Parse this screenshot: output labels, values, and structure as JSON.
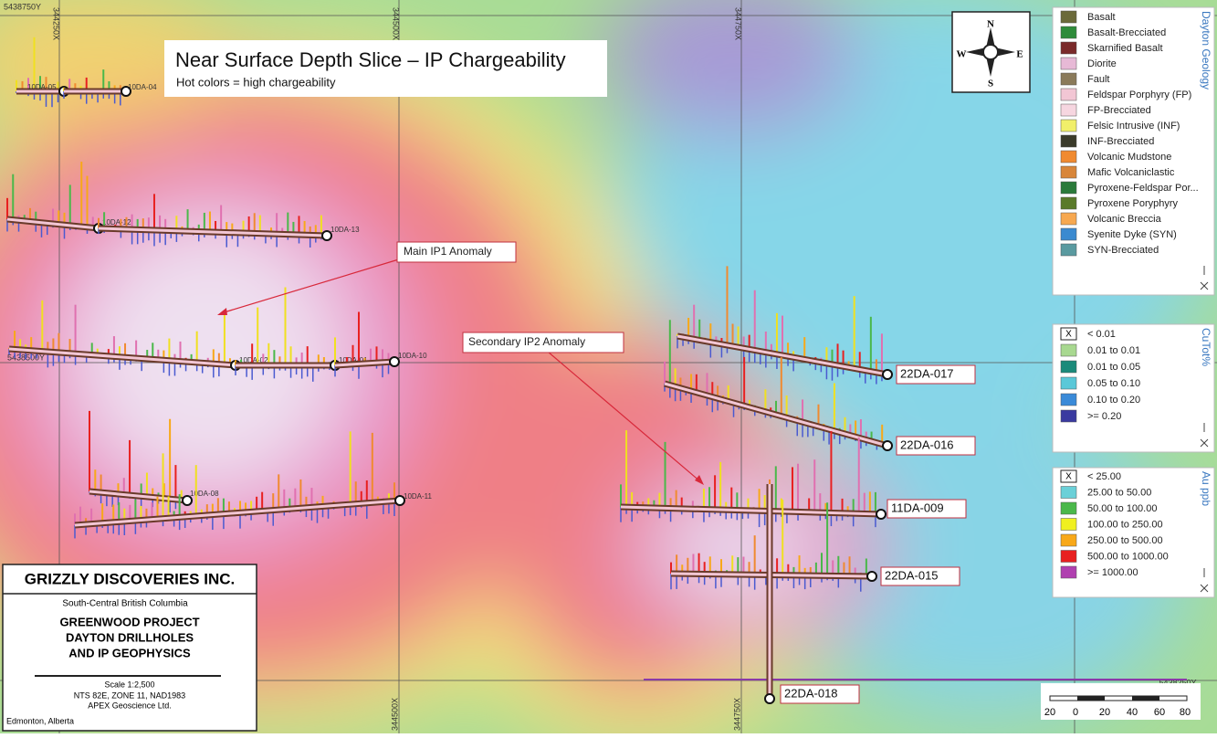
{
  "map": {
    "title": "Near Surface Depth Slice – IP Chargeability",
    "subtitle": "Hot colors = high chargeability",
    "grid_labels": {
      "top": [
        "5438750Y",
        "344250X",
        "344500X",
        "344750X"
      ],
      "left": "5438500Y",
      "bottom": [
        "344500X",
        "344750X"
      ],
      "right": "5438250Y"
    },
    "annotations": [
      "Main IP1 Anomaly",
      "Secondary IP2 Anomaly"
    ],
    "drillholes": [
      "10DA-05",
      "10DA-04",
      "10DA-12",
      "10DA-13",
      "10DA-02",
      "10DA-01",
      "10DA-10",
      "10DA-08",
      "10DA-11",
      "22DA-017",
      "22DA-016",
      "11DA-009",
      "22DA-015",
      "22DA-018"
    ]
  },
  "compass": {
    "n": "N",
    "s": "S",
    "e": "E",
    "w": "W"
  },
  "legends": [
    {
      "title": "Dayton Geology",
      "items": [
        {
          "label": "Basalt",
          "color": "#6b6a3a"
        },
        {
          "label": "Basalt-Brecciated",
          "color": "#2e8b3a"
        },
        {
          "label": "Skarnified Basalt",
          "color": "#7a2a2a"
        },
        {
          "label": "Diorite",
          "color": "#e7b9d6"
        },
        {
          "label": "Fault",
          "color": "#8a7a5a"
        },
        {
          "label": "Feldspar Porphyry (FP)",
          "color": "#f2c6d4"
        },
        {
          "label": "FP-Brecciated",
          "color": "#f6d6e0"
        },
        {
          "label": "Felsic Intrusive (INF)",
          "color": "#f1ef6a"
        },
        {
          "label": "INF-Brecciated",
          "color": "#3a3a2a"
        },
        {
          "label": "Volcanic Mudstone",
          "color": "#f08a30"
        },
        {
          "label": "Mafic Volcaniclastic",
          "color": "#d8863a"
        },
        {
          "label": "Pyroxene-Feldspar Por...",
          "color": "#2a7a3a"
        },
        {
          "label": "Pyroxene Poryphyry",
          "color": "#5a7a2a"
        },
        {
          "label": "Volcanic Breccia",
          "color": "#f7a850"
        },
        {
          "label": "Syenite Dyke (SYN)",
          "color": "#3a8ad0"
        },
        {
          "label": "SYN-Brecciated",
          "color": "#5a9aa0"
        }
      ]
    },
    {
      "title": "CuTot%",
      "items": [
        {
          "label": "< 0.01",
          "swatch_text": "X"
        },
        {
          "label": "0.01 to 0.01",
          "color": "#a8d890"
        },
        {
          "label": "0.01 to 0.05",
          "color": "#1a8a7a"
        },
        {
          "label": "0.05 to 0.10",
          "color": "#5ac8d8"
        },
        {
          "label": "0.10 to 0.20",
          "color": "#3a8ad8"
        },
        {
          "label": ">= 0.20",
          "color": "#3a3aa0"
        }
      ]
    },
    {
      "title": "Au ppb",
      "items": [
        {
          "label": "< 25.00",
          "swatch_text": "X"
        },
        {
          "label": "25.00 to 50.00",
          "color": "#6ad0d8"
        },
        {
          "label": "50.00 to 100.00",
          "color": "#4ab84a"
        },
        {
          "label": "100.00 to 250.00",
          "color": "#f0f020"
        },
        {
          "label": "250.00 to 500.00",
          "color": "#f8a818"
        },
        {
          "label": "500.00 to 1000.00",
          "color": "#e82020"
        },
        {
          "label": ">= 1000.00",
          "color": "#b040b0"
        }
      ]
    }
  ],
  "title_block": {
    "company": "GRIZZLY DISCOVERIES INC.",
    "region": "South-Central British Columbia",
    "project": [
      "GREENWOOD PROJECT",
      "DAYTON DRILLHOLES",
      "AND IP GEOPHYSICS"
    ],
    "scale": "Scale 1:2,500",
    "projection": "NTS 82E, ZONE 11, NAD1983",
    "author": "APEX Geoscience Ltd.",
    "location": "Edmonton, Alberta"
  },
  "scale_bar": {
    "labels": [
      20,
      0,
      20,
      40,
      60,
      80
    ]
  }
}
